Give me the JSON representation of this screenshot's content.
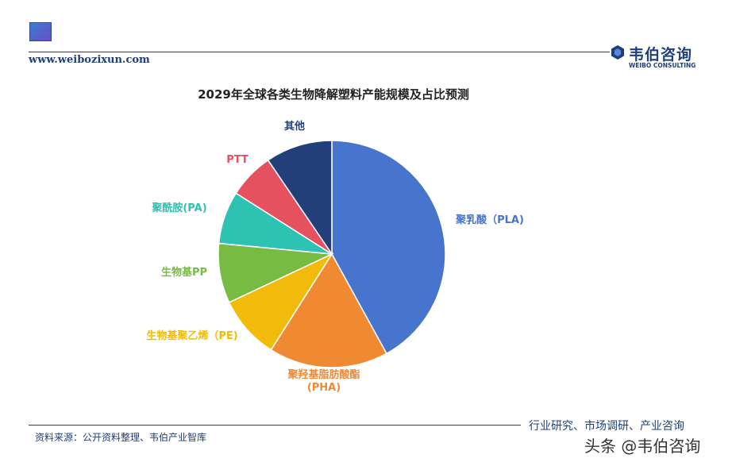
{
  "header": {
    "site_url": "www.weibozixun.com",
    "brand_cn": "韦伯咨询",
    "brand_en": "WEIBO CONSULTING"
  },
  "footer": {
    "tagline": "行业研究、市场调研、产业咨询",
    "source": "资料来源：公开资料整理、韦伯产业智库",
    "watermark": "头条 @韦伯咨询"
  },
  "colors": {
    "brand": "#1f3f7a"
  },
  "chart_data": {
    "type": "pie",
    "title": "2029年全球各类生物降解塑料产能规模及占比预测",
    "slices": [
      {
        "label": "聚乳酸（PLA)",
        "value": 42,
        "color": "#4775cd"
      },
      {
        "label": "聚羟基脂肪酸酯\n(PHA)",
        "value": 17,
        "color": "#f08a32"
      },
      {
        "label": "生物基聚乙烯（PE)",
        "value": 9,
        "color": "#f2bb0c"
      },
      {
        "label": "生物基PP",
        "value": 8.5,
        "color": "#77bb43"
      },
      {
        "label": "聚酰胺(PA)",
        "value": 7.5,
        "color": "#2ec2b3"
      },
      {
        "label": "PTT",
        "value": 6.5,
        "color": "#e5515f"
      },
      {
        "label": "其他",
        "value": 9.5,
        "color": "#233f7a"
      }
    ],
    "start_angle": "12 o'clock",
    "direction": "clockwise",
    "legend": "none (labels outside slices)"
  }
}
